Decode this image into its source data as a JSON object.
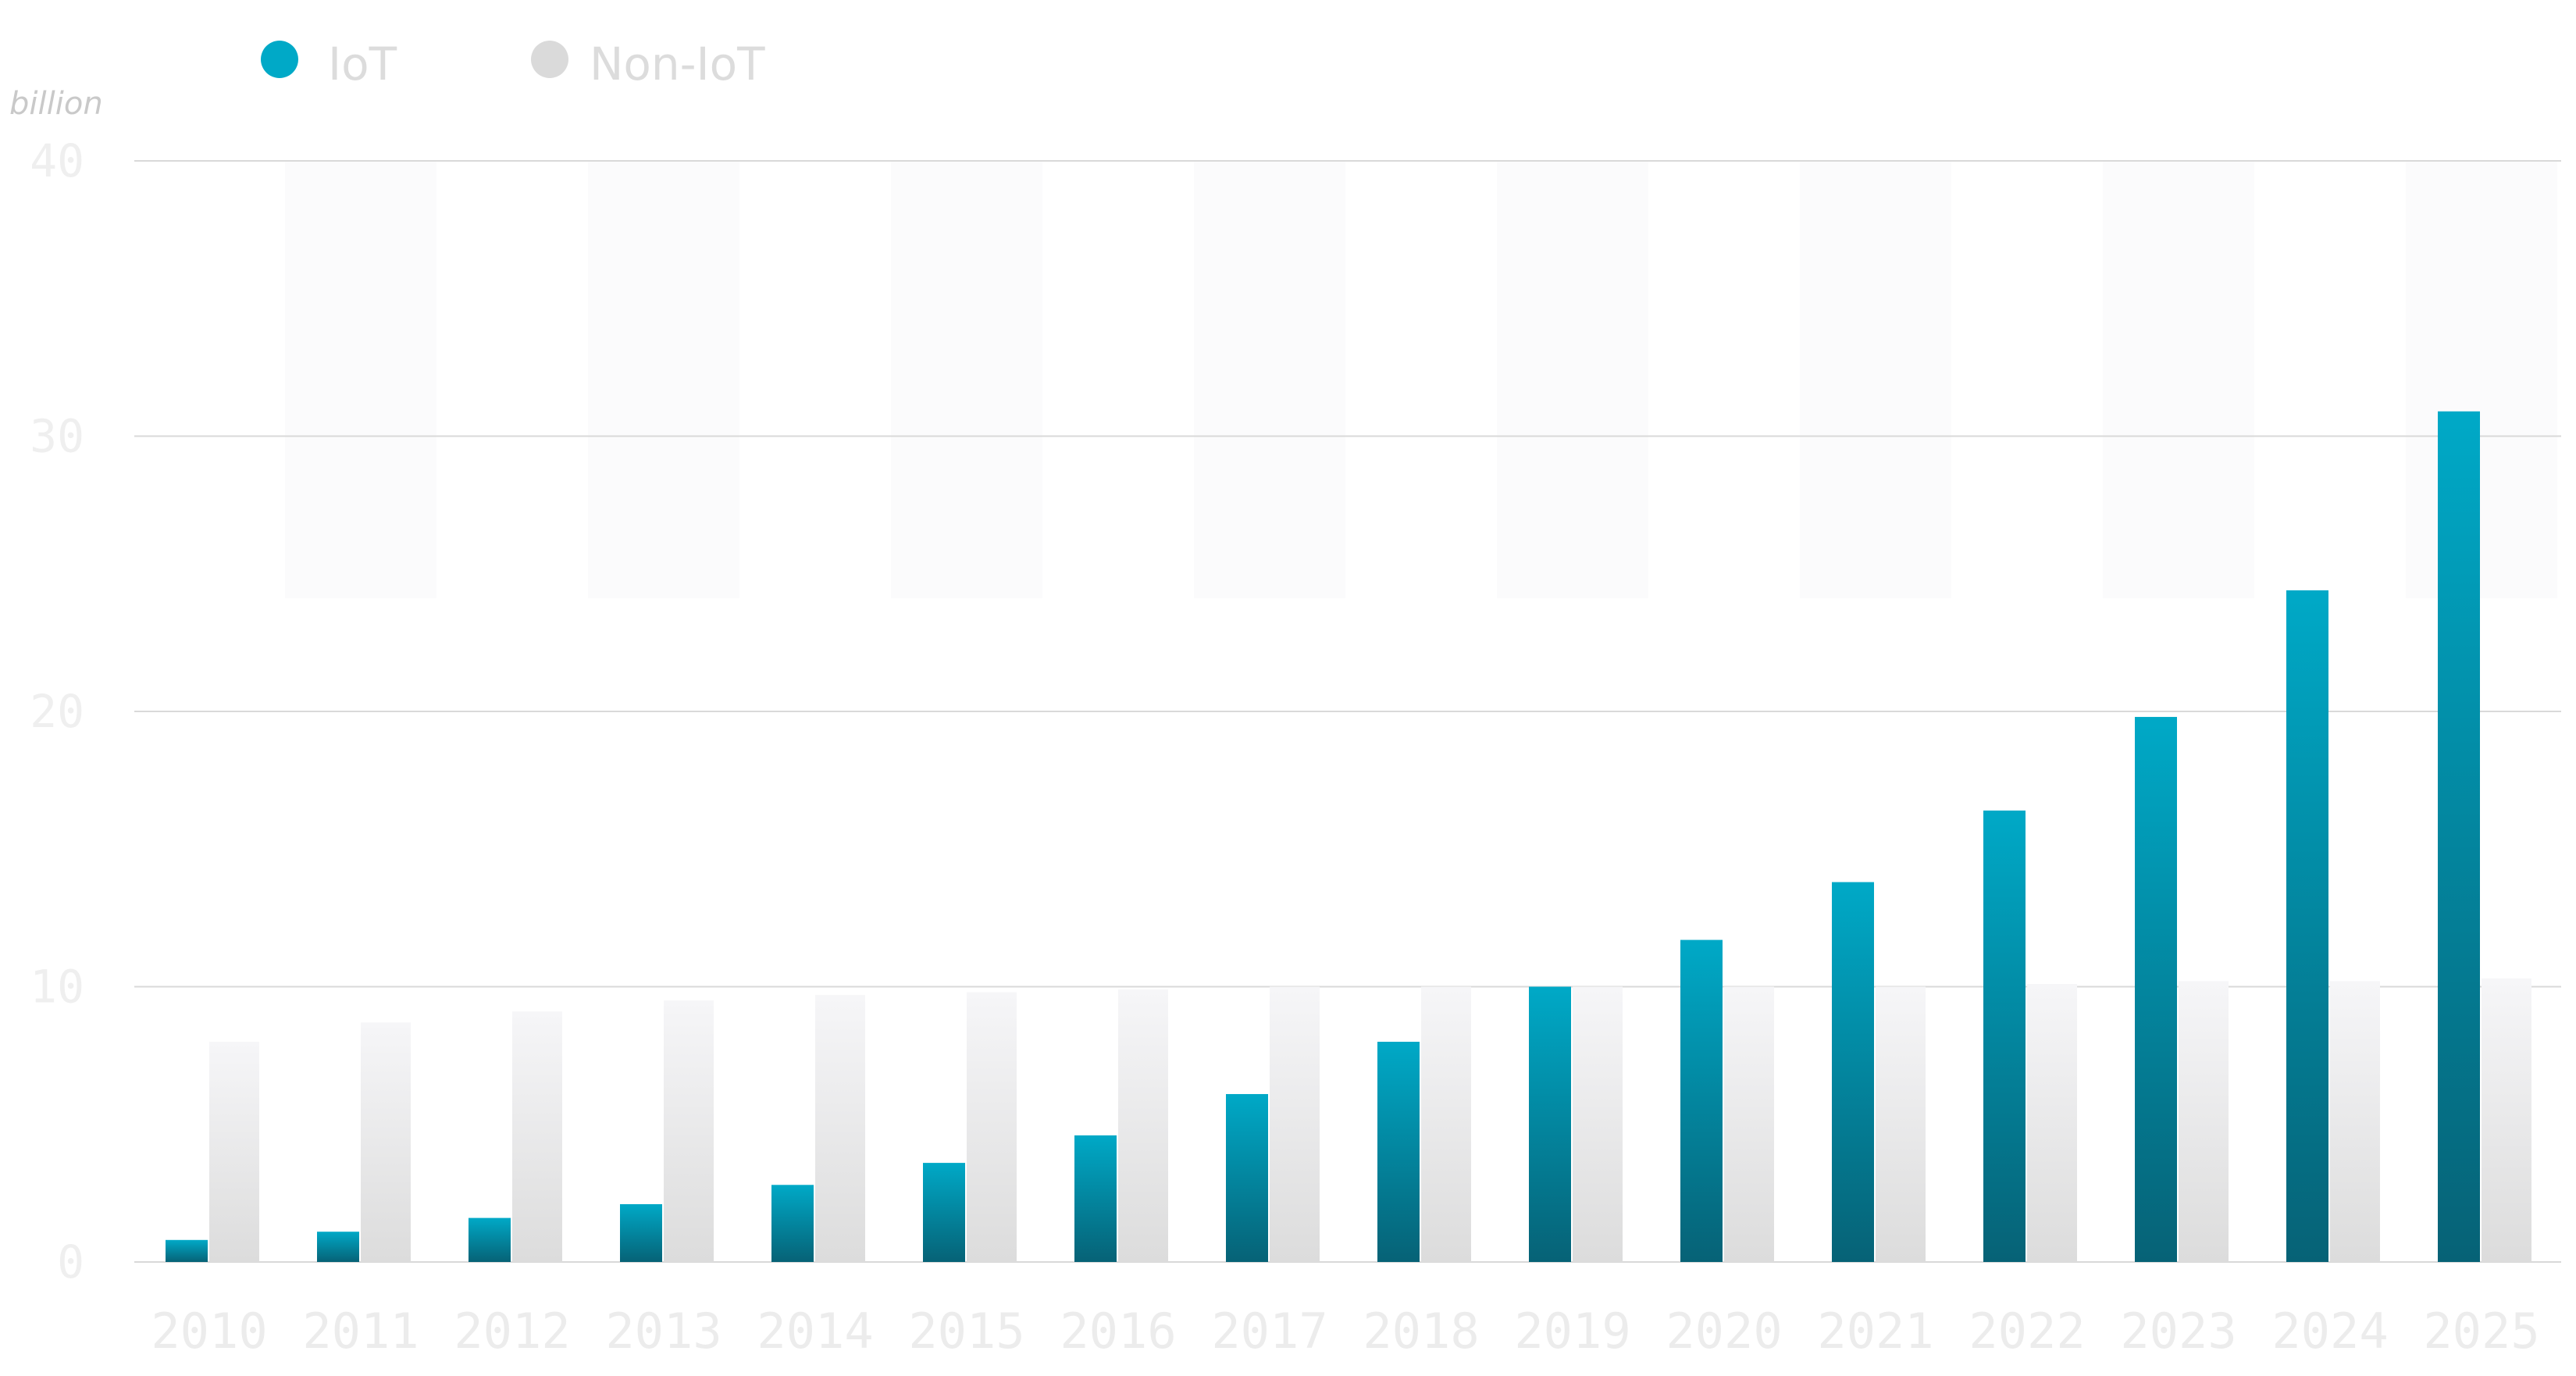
{
  "colors": {
    "iot": "#00a9c7",
    "iot_dark": "#066276",
    "non_iot": "#f6f6f8",
    "non_iot_dark": "#dcdcdc",
    "legend_non_iot": "#dadada",
    "grid": "#d9d9d9",
    "band": "#fbfbfc"
  },
  "legend": [
    {
      "label": "IoT",
      "color": "#00a9c7",
      "icon": "circle-icon"
    },
    {
      "label": "Non-IoT",
      "color": "#dadada",
      "icon": "circle-icon"
    }
  ],
  "chart_data": {
    "type": "bar",
    "title": "",
    "xlabel": "",
    "ylabel": "billion",
    "ylim": [
      0,
      40
    ],
    "y_ticks": [
      "0",
      "10",
      "20",
      "30",
      "40"
    ],
    "categories": [
      "2010",
      "2011",
      "2012",
      "2013",
      "2014",
      "2015",
      "2016",
      "2017",
      "2018",
      "2019",
      "2020",
      "2021",
      "2022",
      "2023",
      "2024",
      "2025"
    ],
    "series": [
      {
        "name": "IoT",
        "values": [
          0.8,
          1.1,
          1.6,
          2.1,
          2.8,
          3.6,
          4.6,
          6.1,
          8.0,
          10.0,
          11.7,
          13.8,
          16.4,
          19.8,
          24.4,
          30.9
        ]
      },
      {
        "name": "Non-IoT",
        "values": [
          8.0,
          8.7,
          9.1,
          9.5,
          9.7,
          9.8,
          9.9,
          10.0,
          10.0,
          10.0,
          10.0,
          10.0,
          10.1,
          10.2,
          10.2,
          10.3
        ]
      }
    ],
    "grid": true,
    "legend_position": "top-left"
  }
}
